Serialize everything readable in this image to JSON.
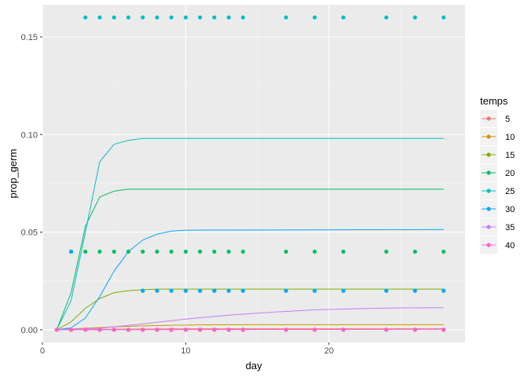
{
  "chart_data": {
    "type": "scatter",
    "xlabel": "day",
    "ylabel": "prop_germ",
    "xlim": [
      0,
      29.5
    ],
    "ylim": [
      -0.0065,
      0.1665
    ],
    "x_ticks": [
      0,
      10,
      20
    ],
    "y_ticks": [
      0.0,
      0.05,
      0.1,
      0.15
    ],
    "y_tick_labels": [
      "0.00",
      "0.05",
      "0.10",
      "0.15"
    ],
    "grid": true,
    "background": "#ebebeb",
    "legend": {
      "title": "temps",
      "placement": "right",
      "labels": [
        "5",
        "10",
        "15",
        "20",
        "25",
        "30",
        "35",
        "40"
      ]
    },
    "series": [
      {
        "name": "5",
        "color": "#F8766D",
        "points": [
          [
            1,
            0
          ],
          [
            2,
            0
          ],
          [
            3,
            0
          ],
          [
            4,
            0
          ],
          [
            5,
            0
          ],
          [
            6,
            0
          ],
          [
            7,
            0
          ],
          [
            8,
            0
          ],
          [
            9,
            0
          ],
          [
            10,
            0
          ],
          [
            11,
            0
          ],
          [
            12,
            0
          ],
          [
            13,
            0
          ],
          [
            14,
            0
          ],
          [
            17,
            0
          ],
          [
            19,
            0
          ],
          [
            21,
            0
          ],
          [
            24,
            0
          ],
          [
            26,
            0
          ],
          [
            28,
            0
          ]
        ],
        "line": [
          [
            1,
            0
          ],
          [
            5,
            0.0003
          ],
          [
            10,
            0.0005
          ],
          [
            28,
            0.0005
          ]
        ]
      },
      {
        "name": "10",
        "color": "#CD9600",
        "points": [
          [
            1,
            0
          ],
          [
            2,
            0
          ],
          [
            3,
            0
          ],
          [
            4,
            0
          ],
          [
            5,
            0
          ],
          [
            6,
            0
          ],
          [
            7,
            0
          ],
          [
            8,
            0
          ],
          [
            9,
            0
          ],
          [
            10,
            0
          ],
          [
            11,
            0
          ],
          [
            12,
            0
          ],
          [
            13,
            0
          ],
          [
            14,
            0
          ],
          [
            17,
            0
          ],
          [
            19,
            0
          ],
          [
            21,
            0
          ],
          [
            24,
            0
          ],
          [
            26,
            0
          ],
          [
            28,
            0
          ]
        ],
        "line": [
          [
            1,
            0
          ],
          [
            3,
            0.0008
          ],
          [
            5,
            0.0015
          ],
          [
            7,
            0.002
          ],
          [
            9,
            0.0023
          ],
          [
            11,
            0.0025
          ],
          [
            14,
            0.0026
          ],
          [
            28,
            0.0026
          ]
        ]
      },
      {
        "name": "15",
        "color": "#7CAE00",
        "points": [
          [
            7,
            0.02
          ],
          [
            8,
            0.02
          ],
          [
            9,
            0.02
          ],
          [
            10,
            0.02
          ],
          [
            11,
            0.02
          ],
          [
            12,
            0.02
          ],
          [
            13,
            0.02
          ],
          [
            14,
            0.02
          ],
          [
            17,
            0.02
          ],
          [
            19,
            0.02
          ],
          [
            21,
            0.02
          ],
          [
            24,
            0.02
          ],
          [
            26,
            0.02
          ],
          [
            28,
            0.02
          ]
        ],
        "line": [
          [
            1,
            0
          ],
          [
            2,
            0.004
          ],
          [
            3,
            0.011
          ],
          [
            4,
            0.016
          ],
          [
            5,
            0.019
          ],
          [
            6,
            0.02
          ],
          [
            7,
            0.0205
          ],
          [
            8,
            0.0208
          ],
          [
            28,
            0.0208
          ]
        ]
      },
      {
        "name": "20",
        "color": "#00BE67",
        "points": [
          [
            2,
            0.04
          ],
          [
            3,
            0.04
          ],
          [
            4,
            0.04
          ],
          [
            5,
            0.04
          ],
          [
            6,
            0.04
          ],
          [
            7,
            0.04
          ],
          [
            8,
            0.04
          ],
          [
            9,
            0.04
          ],
          [
            10,
            0.04
          ],
          [
            11,
            0.04
          ],
          [
            12,
            0.04
          ],
          [
            13,
            0.04
          ],
          [
            14,
            0.04
          ],
          [
            17,
            0.04
          ],
          [
            19,
            0.04
          ],
          [
            21,
            0.04
          ],
          [
            24,
            0.04
          ],
          [
            26,
            0.04
          ],
          [
            28,
            0.04
          ]
        ],
        "line": [
          [
            1,
            0
          ],
          [
            2,
            0.019
          ],
          [
            3,
            0.053
          ],
          [
            4,
            0.068
          ],
          [
            5,
            0.071
          ],
          [
            6,
            0.072
          ],
          [
            28,
            0.072
          ]
        ]
      },
      {
        "name": "25",
        "color": "#00BFC4",
        "points": [
          [
            3,
            0.16
          ],
          [
            4,
            0.16
          ],
          [
            5,
            0.16
          ],
          [
            6,
            0.16
          ],
          [
            7,
            0.16
          ],
          [
            8,
            0.16
          ],
          [
            9,
            0.16
          ],
          [
            10,
            0.16
          ],
          [
            11,
            0.16
          ],
          [
            12,
            0.16
          ],
          [
            13,
            0.16
          ],
          [
            14,
            0.16
          ],
          [
            17,
            0.16
          ],
          [
            19,
            0.16
          ],
          [
            21,
            0.16
          ],
          [
            24,
            0.16
          ],
          [
            26,
            0.16
          ],
          [
            28,
            0.16
          ]
        ],
        "line": [
          [
            1,
            0
          ],
          [
            2,
            0.015
          ],
          [
            3,
            0.05
          ],
          [
            4,
            0.086
          ],
          [
            5,
            0.095
          ],
          [
            6,
            0.097
          ],
          [
            7,
            0.098
          ],
          [
            28,
            0.098
          ]
        ]
      },
      {
        "name": "30",
        "color": "#00A9FF",
        "points": [
          [
            2,
            0.04
          ],
          [
            7,
            0.02
          ],
          [
            8,
            0.02
          ],
          [
            9,
            0.02
          ],
          [
            10,
            0.02
          ],
          [
            11,
            0.02
          ],
          [
            12,
            0.02
          ],
          [
            13,
            0.02
          ],
          [
            14,
            0.02
          ],
          [
            17,
            0.02
          ],
          [
            19,
            0.02
          ],
          [
            21,
            0.02
          ],
          [
            24,
            0.02
          ],
          [
            26,
            0.02
          ],
          [
            28,
            0.02
          ]
        ],
        "line": [
          [
            1,
            0
          ],
          [
            2,
            0.001
          ],
          [
            3,
            0.006
          ],
          [
            4,
            0.017
          ],
          [
            5,
            0.03
          ],
          [
            6,
            0.04
          ],
          [
            7,
            0.046
          ],
          [
            8,
            0.049
          ],
          [
            9,
            0.0505
          ],
          [
            10,
            0.051
          ],
          [
            28,
            0.0513
          ]
        ]
      },
      {
        "name": "35",
        "color": "#C77CFF",
        "points": [
          [
            1,
            0
          ],
          [
            2,
            0
          ],
          [
            3,
            0
          ],
          [
            4,
            0
          ],
          [
            5,
            0
          ],
          [
            6,
            0
          ],
          [
            7,
            0
          ],
          [
            8,
            0
          ],
          [
            9,
            0
          ],
          [
            10,
            0
          ],
          [
            11,
            0
          ],
          [
            12,
            0
          ],
          [
            13,
            0
          ],
          [
            14,
            0
          ],
          [
            17,
            0
          ],
          [
            19,
            0
          ],
          [
            21,
            0
          ],
          [
            24,
            0
          ],
          [
            26,
            0
          ],
          [
            28,
            0
          ]
        ],
        "line": [
          [
            1,
            0
          ],
          [
            4,
            0.0008
          ],
          [
            7,
            0.003
          ],
          [
            10,
            0.0055
          ],
          [
            13,
            0.0075
          ],
          [
            16,
            0.009
          ],
          [
            19,
            0.0102
          ],
          [
            22,
            0.0108
          ],
          [
            25,
            0.0112
          ],
          [
            28,
            0.0113
          ]
        ]
      },
      {
        "name": "40",
        "color": "#FF61CC",
        "points": [
          [
            1,
            0
          ],
          [
            2,
            0
          ],
          [
            3,
            0
          ],
          [
            4,
            0
          ],
          [
            5,
            0
          ],
          [
            6,
            0
          ],
          [
            7,
            0
          ],
          [
            8,
            0
          ],
          [
            9,
            0
          ],
          [
            10,
            0
          ],
          [
            11,
            0
          ],
          [
            12,
            0
          ],
          [
            13,
            0
          ],
          [
            14,
            0
          ],
          [
            17,
            0
          ],
          [
            19,
            0
          ],
          [
            21,
            0
          ],
          [
            24,
            0
          ],
          [
            26,
            0
          ],
          [
            28,
            0
          ]
        ],
        "line": [
          [
            1,
            0
          ],
          [
            28,
            0.0002
          ]
        ]
      }
    ]
  }
}
